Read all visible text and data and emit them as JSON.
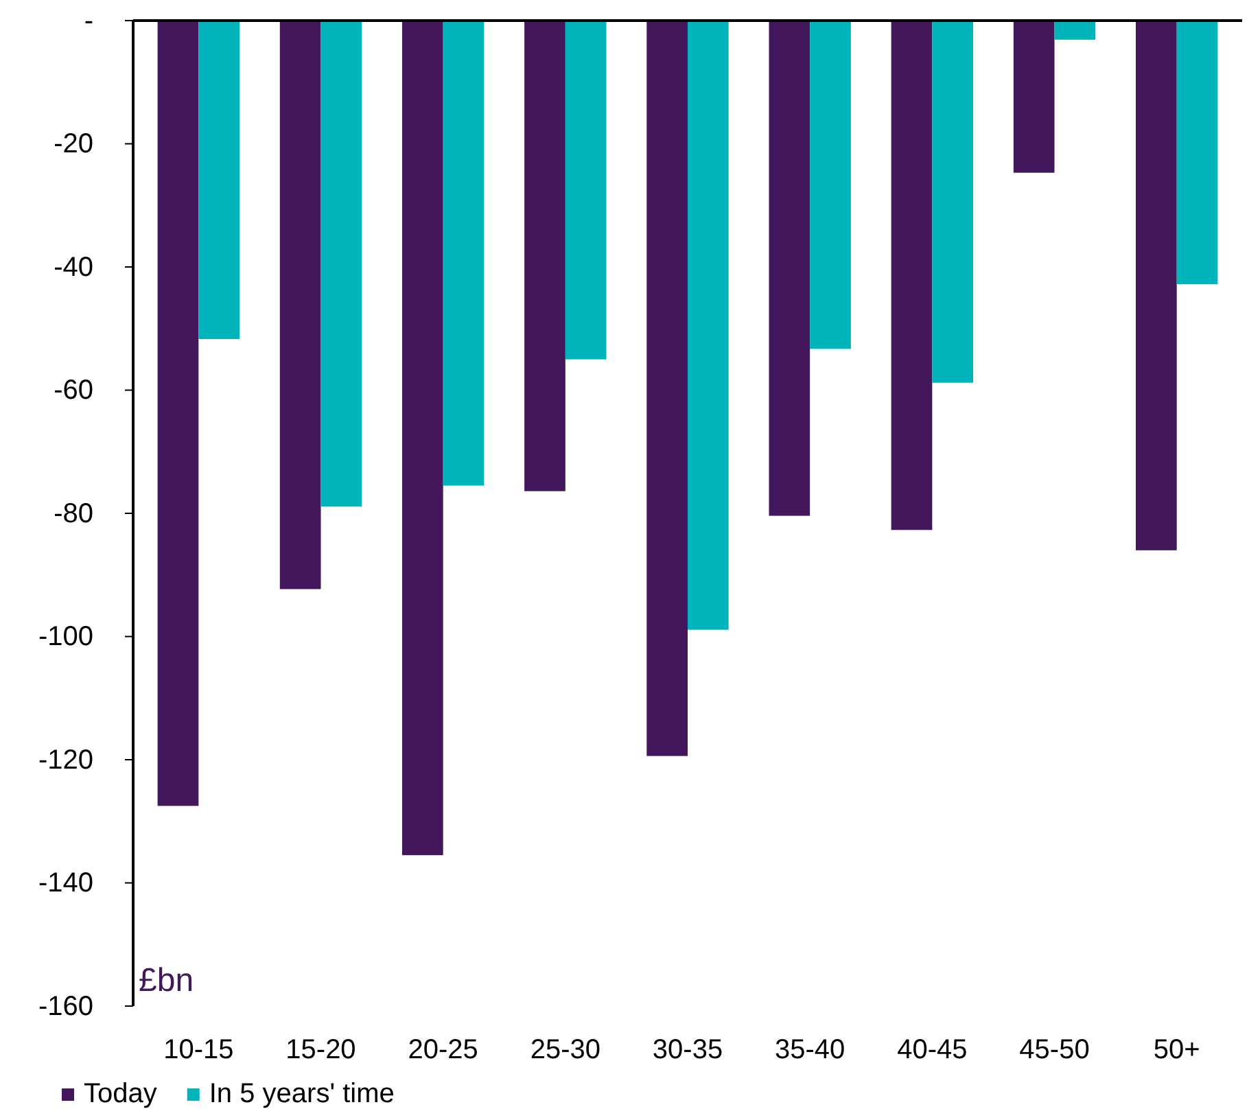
{
  "chart_data": {
    "type": "bar",
    "ylabel": "£bn",
    "categories": [
      "10-15",
      "15-20",
      "20-25",
      "25-30",
      "30-35",
      "35-40",
      "40-45",
      "45-50",
      "50+"
    ],
    "series": [
      {
        "name": "Today",
        "color": "#43175b",
        "values": [
          -127.5,
          -92.3,
          -135.5,
          -76.4,
          -119.4,
          -80.4,
          -82.7,
          -24.7,
          -86.0
        ]
      },
      {
        "name": "In 5 years' time",
        "color": "#00b4bc",
        "values": [
          -51.7,
          -78.9,
          -75.5,
          -55.0,
          -98.9,
          -53.3,
          -58.8,
          -3.1,
          -42.8
        ]
      }
    ],
    "ylim": [
      -160,
      0
    ],
    "yticks": [
      {
        "value": 0,
        "label": "-"
      },
      -20,
      -40,
      -60,
      -80,
      -100,
      -120,
      -140,
      -160
    ],
    "grid": false,
    "legend": "bottom"
  }
}
